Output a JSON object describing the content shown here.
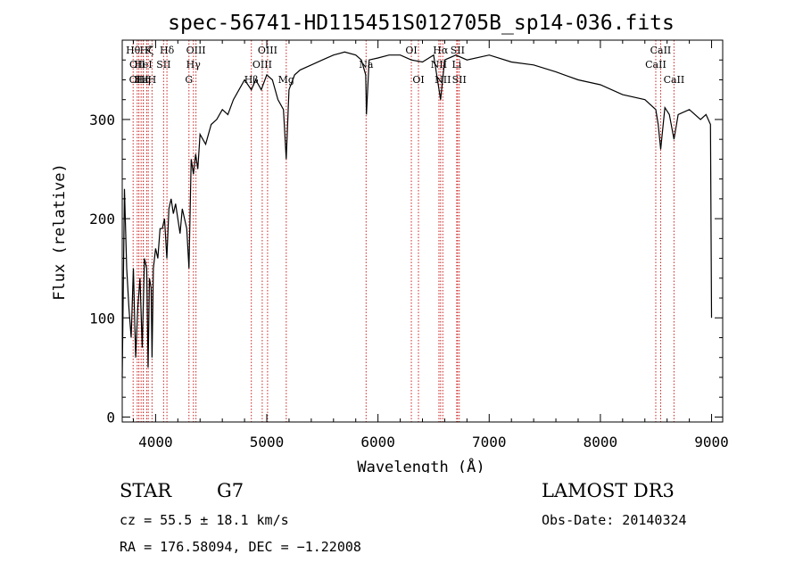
{
  "chart_data": {
    "type": "line",
    "title": "spec-56741-HD115451S012705B_sp14-036.fits",
    "xlabel": "Wavelength (Å)",
    "ylabel": "Flux (relative)",
    "xlim": [
      3700,
      9100
    ],
    "ylim": [
      -5,
      380
    ],
    "xticks": [
      {
        "value": 4000,
        "label": "4000"
      },
      {
        "value": 5000,
        "label": "5000"
      },
      {
        "value": 6000,
        "label": "6000"
      },
      {
        "value": 7000,
        "label": "7000"
      },
      {
        "value": 8000,
        "label": "8000"
      },
      {
        "value": 9000,
        "label": "9000"
      }
    ],
    "yticks": [
      {
        "value": 0,
        "label": "0"
      },
      {
        "value": 100,
        "label": "100"
      },
      {
        "value": 200,
        "label": "200"
      },
      {
        "value": 300,
        "label": "300"
      }
    ],
    "series": [
      {
        "name": "flux",
        "x": [
          3700,
          3720,
          3740,
          3760,
          3780,
          3800,
          3820,
          3840,
          3860,
          3880,
          3900,
          3920,
          3933,
          3945,
          3960,
          3968,
          3980,
          4000,
          4020,
          4040,
          4060,
          4080,
          4101,
          4120,
          4140,
          4160,
          4180,
          4200,
          4220,
          4240,
          4260,
          4280,
          4300,
          4320,
          4340,
          4360,
          4380,
          4400,
          4450,
          4500,
          4550,
          4600,
          4650,
          4700,
          4750,
          4800,
          4861,
          4900,
          4950,
          5000,
          5050,
          5100,
          5150,
          5175,
          5200,
          5250,
          5300,
          5400,
          5500,
          5600,
          5700,
          5800,
          5850,
          5890,
          5896,
          5920,
          6000,
          6100,
          6200,
          6300,
          6400,
          6500,
          6563,
          6600,
          6700,
          6800,
          7000,
          7200,
          7400,
          7600,
          7800,
          8000,
          8200,
          8400,
          8498,
          8520,
          8542,
          8580,
          8620,
          8662,
          8700,
          8800,
          8900,
          8950,
          8990,
          9000
        ],
        "y": [
          40,
          230,
          150,
          110,
          80,
          150,
          60,
          110,
          140,
          70,
          160,
          150,
          50,
          140,
          130,
          60,
          150,
          170,
          160,
          190,
          190,
          200,
          160,
          210,
          220,
          205,
          215,
          200,
          185,
          210,
          200,
          190,
          150,
          260,
          245,
          265,
          250,
          285,
          275,
          295,
          300,
          310,
          305,
          320,
          330,
          340,
          330,
          340,
          330,
          345,
          340,
          320,
          310,
          260,
          330,
          345,
          350,
          355,
          360,
          365,
          368,
          365,
          360,
          345,
          305,
          360,
          362,
          365,
          365,
          360,
          358,
          365,
          320,
          360,
          365,
          360,
          365,
          358,
          355,
          348,
          340,
          335,
          325,
          320,
          310,
          295,
          270,
          312,
          305,
          280,
          305,
          310,
          300,
          305,
          295,
          100
        ],
        "color": "#000000"
      }
    ],
    "lines": [
      {
        "wavelength": 3798,
        "label": "Hθ",
        "row": 0
      },
      {
        "wavelength": 3835,
        "label": "OII",
        "row": 1
      },
      {
        "wavelength": 3850,
        "label": "OIII",
        "row": 2
      },
      {
        "wavelength": 3870,
        "label": "Hε",
        "row": 2
      },
      {
        "wavelength": 3890,
        "label": "Hη",
        "row": 2
      },
      {
        "wavelength": 3889,
        "label": "HeI",
        "row": 1
      },
      {
        "wavelength": 3920,
        "label": "Hζ",
        "row": 0
      },
      {
        "wavelength": 3934,
        "label": "K",
        "row": 0
      },
      {
        "wavelength": 3968,
        "label": "H",
        "row": 2
      },
      {
        "wavelength": 4072,
        "label": "SII",
        "row": 1
      },
      {
        "wavelength": 4102,
        "label": "Hδ",
        "row": 0
      },
      {
        "wavelength": 4300,
        "label": "G",
        "row": 2
      },
      {
        "wavelength": 4340,
        "label": "Hγ",
        "row": 1
      },
      {
        "wavelength": 4363,
        "label": "OIII",
        "row": 0
      },
      {
        "wavelength": 4861,
        "label": "Hβ",
        "row": 2
      },
      {
        "wavelength": 4959,
        "label": "OIII",
        "row": 1
      },
      {
        "wavelength": 5007,
        "label": "OIII",
        "row": 0
      },
      {
        "wavelength": 5175,
        "label": "Mg",
        "row": 2
      },
      {
        "wavelength": 5893,
        "label": "Na",
        "row": 1
      },
      {
        "wavelength": 6300,
        "label": "OI",
        "row": 0
      },
      {
        "wavelength": 6364,
        "label": "OI",
        "row": 2
      },
      {
        "wavelength": 6548,
        "label": "NII",
        "row": 1
      },
      {
        "wavelength": 6563,
        "label": "Hα",
        "row": 0
      },
      {
        "wavelength": 6583,
        "label": "NII",
        "row": 2
      },
      {
        "wavelength": 6708,
        "label": "Li",
        "row": 1
      },
      {
        "wavelength": 6716,
        "label": "SII",
        "row": 0
      },
      {
        "wavelength": 6731,
        "label": "SII",
        "row": 2
      },
      {
        "wavelength": 8498,
        "label": "CaII",
        "row": 1
      },
      {
        "wavelength": 8542,
        "label": "CaII",
        "row": 0
      },
      {
        "wavelength": 8662,
        "label": "CaII",
        "row": 2
      }
    ],
    "line_color": "#cc2222"
  },
  "info": {
    "object_class": "STAR",
    "subclass": "G7",
    "survey": "LAMOST DR3",
    "redshift": "cz = 55.5 ± 18.1 km/s",
    "obs_date": "Obs-Date: 20140324",
    "coords": "RA = 176.58094, DEC =  −1.22008"
  }
}
